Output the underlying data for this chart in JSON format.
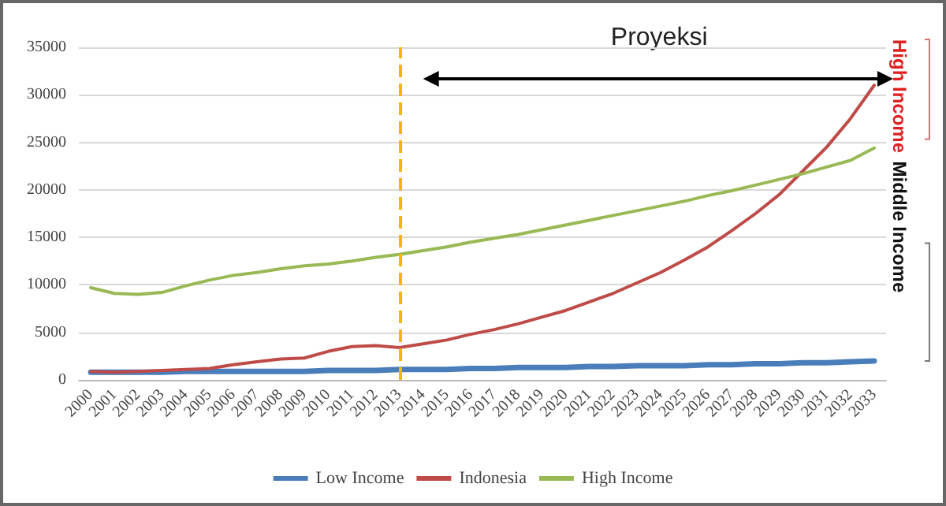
{
  "chart_data": {
    "type": "line",
    "categories": [
      "2000",
      "2001",
      "2002",
      "2003",
      "2004",
      "2005",
      "2006",
      "2007",
      "2008",
      "2009",
      "2010",
      "2011",
      "2012",
      "2013",
      "2014",
      "2015",
      "2016",
      "2017",
      "2018",
      "2019",
      "2020",
      "2021",
      "2022",
      "2023",
      "2024",
      "2025",
      "2026",
      "2027",
      "2028",
      "2029",
      "2030",
      "2031",
      "2032",
      "2033"
    ],
    "series": [
      {
        "name": "Low Income",
        "color": "#4a7ebb",
        "values": [
          800,
          800,
          800,
          800,
          900,
          900,
          900,
          900,
          900,
          900,
          1000,
          1000,
          1000,
          1100,
          1100,
          1100,
          1200,
          1200,
          1300,
          1300,
          1300,
          1400,
          1400,
          1500,
          1500,
          1500,
          1600,
          1600,
          1700,
          1700,
          1800,
          1800,
          1900,
          2000
        ]
      },
      {
        "name": "Indonesia",
        "color": "#be4b48",
        "values": [
          900,
          800,
          900,
          1000,
          1100,
          1200,
          1600,
          1900,
          2200,
          2300,
          3000,
          3500,
          3600,
          3400,
          3800,
          4200,
          4800,
          5300,
          5900,
          6600,
          7300,
          8200,
          9100,
          10200,
          11300,
          12600,
          14000,
          15700,
          17500,
          19500,
          22000,
          24500,
          27500,
          31000
        ]
      },
      {
        "name": "High Income",
        "color": "#98b954",
        "values": [
          9700,
          9100,
          9000,
          9200,
          9900,
          10500,
          11000,
          11300,
          11700,
          12000,
          12200,
          12500,
          12900,
          13200,
          13600,
          14000,
          14500,
          14900,
          15300,
          15800,
          16300,
          16800,
          17300,
          17800,
          18300,
          18800,
          19400,
          19900,
          20500,
          21100,
          21700,
          22400,
          23100,
          24400
        ]
      }
    ],
    "ylim": [
      0,
      35000
    ],
    "yticks": [
      0,
      5000,
      10000,
      15000,
      20000,
      25000,
      30000,
      35000
    ],
    "grid": "y",
    "legend": "bottom",
    "marker": "none",
    "line_style": "solid",
    "ref_lines": [
      {
        "axis": "x",
        "value": "2013",
        "color": "#f5b800",
        "line_style": "dashed"
      }
    ],
    "annotations": [
      "Proyeksi",
      "High Income",
      "Middle Income"
    ]
  }
}
